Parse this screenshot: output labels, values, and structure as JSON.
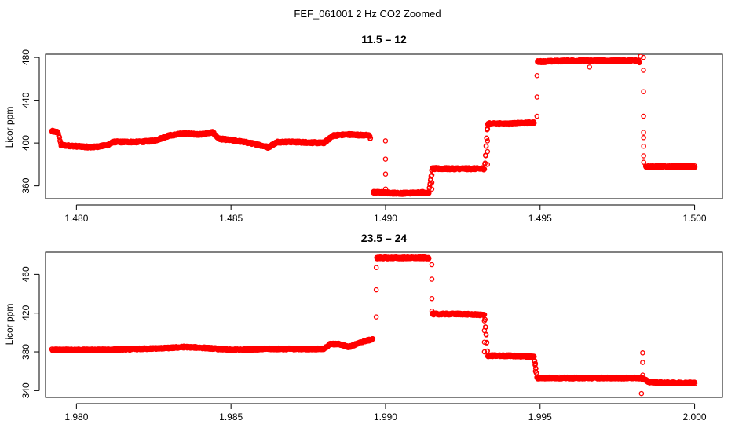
{
  "figure": {
    "suptitle": "FEF_061001  2 Hz CO2 Zoomed"
  },
  "colors": {
    "points": "#ff0000",
    "axes": "#000000"
  },
  "chart_data": [
    {
      "type": "scatter",
      "title": "11.5 – 12",
      "xlabel": "",
      "ylabel": "Licor ppm",
      "xlim": [
        1.479,
        1.5009
      ],
      "ylim": [
        348,
        483
      ],
      "xticks": [
        1.48,
        1.485,
        1.49,
        1.495,
        1.5
      ],
      "xtick_labels": [
        "1.480",
        "1.485",
        "1.490",
        "1.495",
        "1.500"
      ],
      "yticks": [
        360,
        400,
        440,
        480
      ],
      "ytick_labels": [
        "360",
        "400",
        "440",
        "480"
      ],
      "marker": "open-circle",
      "series": [
        {
          "name": "CO2 2 Hz",
          "trace": [
            [
              1.4792,
              411
            ],
            [
              1.4794,
              410
            ],
            [
              1.4795,
              398
            ],
            [
              1.48,
              397
            ],
            [
              1.4805,
              396
            ],
            [
              1.481,
              398
            ],
            [
              1.4812,
              401
            ],
            [
              1.482,
              401
            ],
            [
              1.4825,
              402
            ],
            [
              1.483,
              407
            ],
            [
              1.4835,
              409
            ],
            [
              1.484,
              408
            ],
            [
              1.4844,
              410
            ],
            [
              1.4846,
              404
            ],
            [
              1.4852,
              402
            ],
            [
              1.4858,
              399
            ],
            [
              1.4862,
              396
            ],
            [
              1.4865,
              401
            ],
            [
              1.487,
              401
            ],
            [
              1.488,
              400
            ],
            [
              1.4883,
              407
            ],
            [
              1.4888,
              408
            ],
            [
              1.4895,
              407
            ],
            [
              1.4896,
              354
            ],
            [
              1.4905,
              353
            ],
            [
              1.4914,
              354
            ],
            [
              1.4915,
              376
            ],
            [
              1.4925,
              376
            ],
            [
              1.4932,
              376
            ],
            [
              1.4933,
              418
            ],
            [
              1.494,
              418
            ],
            [
              1.4948,
              419
            ],
            [
              1.4949,
              476
            ],
            [
              1.496,
              477
            ],
            [
              1.497,
              477
            ],
            [
              1.4982,
              477
            ],
            [
              1.4984,
              378
            ],
            [
              1.499,
              378
            ],
            [
              1.5,
              378
            ]
          ],
          "noise_ppm": 1.0,
          "transitions": [
            {
              "x": 1.49,
              "from": 407,
              "to": 354,
              "values": [
                402,
                385,
                371,
                357
              ]
            },
            {
              "x": 1.4915,
              "from": 354,
              "to": 376,
              "values": [
                357,
                363,
                370
              ]
            },
            {
              "x": 1.4933,
              "from": 376,
              "to": 418,
              "values": [
                380,
                392,
                402,
                413
              ]
            },
            {
              "x": 1.4949,
              "from": 419,
              "to": 476,
              "values": [
                425,
                443,
                463
              ]
            },
            {
              "x": 1.49835,
              "from": 477,
              "to": 378,
              "values": [
                480,
                468,
                448,
                425,
                410,
                405,
                397,
                388,
                382
              ]
            }
          ],
          "outliers": [
            [
              1.4966,
              471
            ],
            [
              1.49825,
              481
            ]
          ]
        }
      ]
    },
    {
      "type": "scatter",
      "title": "23.5 – 24",
      "xlabel": "",
      "ylabel": "Licor ppm",
      "xlim": [
        1.979,
        2.0009
      ],
      "ylim": [
        333,
        483
      ],
      "xticks": [
        1.98,
        1.985,
        1.99,
        1.995,
        2.0
      ],
      "xtick_labels": [
        "1.980",
        "1.985",
        "1.990",
        "1.995",
        "2.000"
      ],
      "yticks": [
        340,
        380,
        420,
        460
      ],
      "ytick_labels": [
        "340",
        "380",
        "420",
        "460"
      ],
      "marker": "open-circle",
      "series": [
        {
          "name": "CO2 2 Hz",
          "trace": [
            [
              1.9792,
              382
            ],
            [
              1.98,
              382
            ],
            [
              1.981,
              382
            ],
            [
              1.982,
              383
            ],
            [
              1.983,
              384
            ],
            [
              1.9835,
              385
            ],
            [
              1.9842,
              384
            ],
            [
              1.985,
              382
            ],
            [
              1.986,
              383
            ],
            [
              1.987,
              383
            ],
            [
              1.988,
              383
            ],
            [
              1.9882,
              388
            ],
            [
              1.9885,
              388
            ],
            [
              1.9888,
              385
            ],
            [
              1.9893,
              391
            ],
            [
              1.9896,
              393
            ],
            [
              1.9897,
              477
            ],
            [
              1.9905,
              477
            ],
            [
              1.9914,
              477
            ],
            [
              1.9915,
              419
            ],
            [
              1.9925,
              419
            ],
            [
              1.9932,
              418
            ],
            [
              1.9933,
              376
            ],
            [
              1.994,
              376
            ],
            [
              1.9948,
              375
            ],
            [
              1.9949,
              353
            ],
            [
              1.996,
              353
            ],
            [
              1.997,
              353
            ],
            [
              1.9983,
              353
            ],
            [
              1.9985,
              349
            ],
            [
              1.999,
              348
            ],
            [
              2.0,
              348
            ]
          ],
          "noise_ppm": 1.0,
          "transitions": [
            {
              "x": 1.9897,
              "from": 393,
              "to": 477,
              "values": [
                416,
                444,
                467
              ]
            },
            {
              "x": 1.9915,
              "from": 477,
              "to": 419,
              "values": [
                470,
                455,
                435,
                422
              ]
            },
            {
              "x": 1.9932,
              "from": 418,
              "to": 376,
              "values": [
                412,
                402,
                390,
                380
              ]
            },
            {
              "x": 1.99485,
              "from": 375,
              "to": 353,
              "values": [
                368,
                360
              ]
            },
            {
              "x": 1.99832,
              "from": 353,
              "to": 349,
              "values": [
                379,
                369,
                356,
                351
              ]
            }
          ],
          "outliers": [
            [
              1.99828,
              337
            ]
          ]
        }
      ]
    }
  ]
}
